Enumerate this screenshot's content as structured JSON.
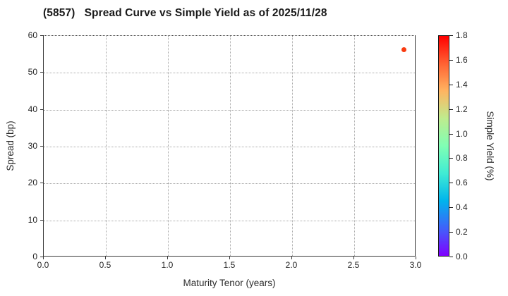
{
  "header": {
    "title": "(5857)   Spread Curve vs Simple Yield as of 2025/11/28"
  },
  "chart_data": {
    "type": "scatter",
    "title": "(5857)   Spread Curve vs Simple Yield as of 2025/11/28",
    "xlabel": "Maturity Tenor (years)",
    "ylabel": "Spread (bp)",
    "xlim": [
      0.0,
      3.0
    ],
    "ylim": [
      0,
      60
    ],
    "grid": true,
    "grid_style": "dotted",
    "legend_position": "none",
    "x_ticks": [
      0.0,
      0.5,
      1.0,
      1.5,
      2.0,
      2.5,
      3.0
    ],
    "x_tick_labels": [
      "0.0",
      "0.5",
      "1.0",
      "1.5",
      "2.0",
      "2.5",
      "3.0"
    ],
    "y_ticks": [
      0,
      10,
      20,
      30,
      40,
      50,
      60
    ],
    "y_tick_labels": [
      "0",
      "10",
      "20",
      "30",
      "40",
      "50",
      "60"
    ],
    "points": [
      {
        "x": 2.9,
        "y": 56.3,
        "simple_yield": 1.66,
        "color": "#f93b10"
      }
    ],
    "colorbar": {
      "label": "Simple Yield (%)",
      "min": 0.0,
      "max": 1.8,
      "ticks": [
        0.0,
        0.2,
        0.4,
        0.6,
        0.8,
        1.0,
        1.2,
        1.4,
        1.6,
        1.8
      ],
      "tick_labels": [
        "0.0",
        "0.2",
        "0.4",
        "0.6",
        "0.8",
        "1.0",
        "1.2",
        "1.4",
        "1.6",
        "1.8"
      ],
      "colormap": "rainbow",
      "stops": [
        {
          "pos": 0.0,
          "color": "#8000ff"
        },
        {
          "pos": 0.125,
          "color": "#4061fa"
        },
        {
          "pos": 0.25,
          "color": "#00b4ec"
        },
        {
          "pos": 0.375,
          "color": "#40ecd4"
        },
        {
          "pos": 0.5,
          "color": "#80ffb4"
        },
        {
          "pos": 0.625,
          "color": "#bfec8e"
        },
        {
          "pos": 0.75,
          "color": "#ffb461"
        },
        {
          "pos": 0.875,
          "color": "#ff6132"
        },
        {
          "pos": 1.0,
          "color": "#ff0000"
        }
      ]
    },
    "colors": {
      "spine": "#3a3a3a",
      "gridline": "#a8a8a8",
      "tick_text": "#262626",
      "title_text": "#1a1a1a",
      "background": "#ffffff"
    }
  }
}
